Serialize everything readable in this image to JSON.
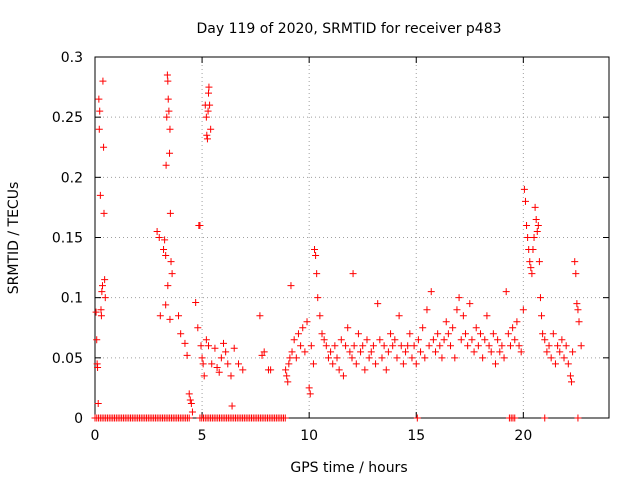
{
  "chart_data": {
    "type": "scatter",
    "title": "Day 119 of 2020, SRMTID for receiver p483",
    "xlabel": "GPS time / hours",
    "ylabel": "SRMTID / TECUs",
    "xlim": [
      0,
      24
    ],
    "ylim": [
      0,
      0.3
    ],
    "grid": true,
    "marker": "+",
    "color": "#ff0000",
    "x_ticks": [
      0,
      5,
      10,
      15,
      20
    ],
    "y_ticks": [
      0,
      0.05,
      0.1,
      0.15,
      0.2,
      0.25,
      0.3
    ],
    "x_tick_labels": [
      "0",
      "5",
      "10",
      "15",
      "20"
    ],
    "y_tick_labels": [
      "0",
      "0.05",
      "0.1",
      "0.15",
      "0.2",
      "0.25",
      "0.3"
    ],
    "series": [
      {
        "name": "SRMTID",
        "points": [
          [
            0.05,
            0.088
          ],
          [
            0.08,
            0.065
          ],
          [
            0.1,
            0.045
          ],
          [
            0.12,
            0.042
          ],
          [
            0.15,
            0.012
          ],
          [
            0.18,
            0.265
          ],
          [
            0.2,
            0.24
          ],
          [
            0.22,
            0.255
          ],
          [
            0.25,
            0.185
          ],
          [
            0.28,
            0.09
          ],
          [
            0.3,
            0.085
          ],
          [
            0.32,
            0.105
          ],
          [
            0.35,
            0.11
          ],
          [
            0.37,
            0.28
          ],
          [
            0.4,
            0.225
          ],
          [
            0.42,
            0.17
          ],
          [
            0.45,
            0.115
          ],
          [
            0.48,
            0.1
          ],
          [
            2.9,
            0.155
          ],
          [
            3.0,
            0.15
          ],
          [
            3.05,
            0.085
          ],
          [
            3.2,
            0.14
          ],
          [
            3.25,
            0.148
          ],
          [
            3.3,
            0.135
          ],
          [
            3.32,
            0.21
          ],
          [
            3.35,
            0.25
          ],
          [
            3.38,
            0.285
          ],
          [
            3.4,
            0.28
          ],
          [
            3.42,
            0.265
          ],
          [
            3.45,
            0.255
          ],
          [
            3.48,
            0.22
          ],
          [
            3.5,
            0.24
          ],
          [
            3.52,
            0.17
          ],
          [
            3.55,
            0.13
          ],
          [
            3.6,
            0.12
          ],
          [
            3.4,
            0.11
          ],
          [
            3.3,
            0.094
          ],
          [
            3.5,
            0.082
          ],
          [
            3.9,
            0.085
          ],
          [
            4.0,
            0.07
          ],
          [
            4.2,
            0.062
          ],
          [
            4.3,
            0.052
          ],
          [
            4.4,
            0.02
          ],
          [
            4.45,
            0.015
          ],
          [
            4.5,
            0.012
          ],
          [
            4.55,
            0.005
          ],
          [
            4.7,
            0.096
          ],
          [
            4.8,
            0.075
          ],
          [
            4.85,
            0.16
          ],
          [
            4.9,
            0.16
          ],
          [
            4.95,
            0.06
          ],
          [
            5.0,
            0.05
          ],
          [
            5.05,
            0.045
          ],
          [
            5.1,
            0.035
          ],
          [
            5.15,
            0.26
          ],
          [
            5.2,
            0.25
          ],
          [
            5.22,
            0.235
          ],
          [
            5.25,
            0.232
          ],
          [
            5.28,
            0.255
          ],
          [
            5.3,
            0.27
          ],
          [
            5.32,
            0.275
          ],
          [
            5.35,
            0.26
          ],
          [
            5.4,
            0.24
          ],
          [
            5.2,
            0.065
          ],
          [
            5.3,
            0.06
          ],
          [
            5.45,
            0.045
          ],
          [
            5.6,
            0.058
          ],
          [
            5.7,
            0.042
          ],
          [
            5.8,
            0.038
          ],
          [
            5.9,
            0.05
          ],
          [
            6.0,
            0.062
          ],
          [
            6.1,
            0.055
          ],
          [
            6.2,
            0.045
          ],
          [
            6.35,
            0.035
          ],
          [
            6.4,
            0.01
          ],
          [
            6.5,
            0.058
          ],
          [
            6.7,
            0.045
          ],
          [
            6.9,
            0.04
          ],
          [
            7.7,
            0.085
          ],
          [
            7.8,
            0.052
          ],
          [
            7.9,
            0.055
          ],
          [
            8.1,
            0.04
          ],
          [
            8.2,
            0.04
          ],
          [
            8.9,
            0.04
          ],
          [
            8.95,
            0.035
          ],
          [
            9.0,
            0.03
          ],
          [
            9.05,
            0.045
          ],
          [
            9.1,
            0.05
          ],
          [
            9.15,
            0.11
          ],
          [
            9.2,
            0.055
          ],
          [
            9.3,
            0.065
          ],
          [
            9.4,
            0.05
          ],
          [
            9.5,
            0.07
          ],
          [
            9.6,
            0.06
          ],
          [
            9.7,
            0.075
          ],
          [
            9.8,
            0.055
          ],
          [
            9.9,
            0.08
          ],
          [
            10.0,
            0.025
          ],
          [
            10.05,
            0.02
          ],
          [
            10.1,
            0.06
          ],
          [
            10.2,
            0.045
          ],
          [
            10.25,
            0.14
          ],
          [
            10.3,
            0.135
          ],
          [
            10.35,
            0.12
          ],
          [
            10.4,
            0.1
          ],
          [
            10.5,
            0.085
          ],
          [
            10.6,
            0.07
          ],
          [
            10.7,
            0.065
          ],
          [
            10.8,
            0.06
          ],
          [
            10.9,
            0.05
          ],
          [
            11.0,
            0.055
          ],
          [
            11.1,
            0.045
          ],
          [
            11.2,
            0.06
          ],
          [
            11.3,
            0.05
          ],
          [
            11.4,
            0.04
          ],
          [
            11.5,
            0.065
          ],
          [
            11.6,
            0.035
          ],
          [
            11.7,
            0.06
          ],
          [
            11.8,
            0.075
          ],
          [
            11.9,
            0.055
          ],
          [
            12.0,
            0.05
          ],
          [
            12.05,
            0.12
          ],
          [
            12.1,
            0.06
          ],
          [
            12.2,
            0.045
          ],
          [
            12.3,
            0.07
          ],
          [
            12.4,
            0.055
          ],
          [
            12.5,
            0.06
          ],
          [
            12.6,
            0.04
          ],
          [
            12.7,
            0.065
          ],
          [
            12.8,
            0.05
          ],
          [
            12.9,
            0.055
          ],
          [
            13.0,
            0.06
          ],
          [
            13.1,
            0.045
          ],
          [
            13.2,
            0.095
          ],
          [
            13.3,
            0.065
          ],
          [
            13.4,
            0.05
          ],
          [
            13.5,
            0.06
          ],
          [
            13.6,
            0.04
          ],
          [
            13.7,
            0.055
          ],
          [
            13.8,
            0.07
          ],
          [
            13.9,
            0.06
          ],
          [
            14.0,
            0.065
          ],
          [
            14.1,
            0.05
          ],
          [
            14.2,
            0.085
          ],
          [
            14.3,
            0.06
          ],
          [
            14.4,
            0.045
          ],
          [
            14.5,
            0.055
          ],
          [
            14.6,
            0.06
          ],
          [
            14.7,
            0.07
          ],
          [
            14.8,
            0.05
          ],
          [
            14.9,
            0.06
          ],
          [
            15.0,
            0.045
          ],
          [
            15.1,
            0.065
          ],
          [
            15.2,
            0.055
          ],
          [
            15.3,
            0.075
          ],
          [
            15.4,
            0.05
          ],
          [
            15.5,
            0.09
          ],
          [
            15.6,
            0.06
          ],
          [
            15.7,
            0.105
          ],
          [
            15.8,
            0.065
          ],
          [
            15.9,
            0.055
          ],
          [
            16.0,
            0.07
          ],
          [
            16.1,
            0.06
          ],
          [
            16.2,
            0.05
          ],
          [
            16.3,
            0.065
          ],
          [
            16.4,
            0.08
          ],
          [
            16.5,
            0.07
          ],
          [
            16.6,
            0.06
          ],
          [
            16.7,
            0.075
          ],
          [
            16.8,
            0.05
          ],
          [
            16.9,
            0.09
          ],
          [
            17.0,
            0.1
          ],
          [
            17.1,
            0.065
          ],
          [
            17.2,
            0.085
          ],
          [
            17.3,
            0.07
          ],
          [
            17.4,
            0.06
          ],
          [
            17.5,
            0.095
          ],
          [
            17.6,
            0.065
          ],
          [
            17.7,
            0.055
          ],
          [
            17.8,
            0.075
          ],
          [
            17.9,
            0.06
          ],
          [
            18.0,
            0.07
          ],
          [
            18.1,
            0.05
          ],
          [
            18.2,
            0.065
          ],
          [
            18.3,
            0.085
          ],
          [
            18.4,
            0.06
          ],
          [
            18.5,
            0.055
          ],
          [
            18.6,
            0.07
          ],
          [
            18.7,
            0.045
          ],
          [
            18.8,
            0.065
          ],
          [
            18.9,
            0.055
          ],
          [
            19.0,
            0.06
          ],
          [
            19.1,
            0.05
          ],
          [
            19.2,
            0.105
          ],
          [
            19.3,
            0.07
          ],
          [
            19.4,
            0.06
          ],
          [
            19.5,
            0.075
          ],
          [
            19.6,
            0.065
          ],
          [
            19.7,
            0.08
          ],
          [
            19.8,
            0.06
          ],
          [
            19.9,
            0.055
          ],
          [
            20.0,
            0.09
          ],
          [
            20.05,
            0.19
          ],
          [
            20.1,
            0.18
          ],
          [
            20.15,
            0.16
          ],
          [
            20.2,
            0.15
          ],
          [
            20.25,
            0.14
          ],
          [
            20.3,
            0.13
          ],
          [
            20.35,
            0.125
          ],
          [
            20.4,
            0.12
          ],
          [
            20.45,
            0.14
          ],
          [
            20.5,
            0.15
          ],
          [
            20.55,
            0.175
          ],
          [
            20.6,
            0.165
          ],
          [
            20.65,
            0.155
          ],
          [
            20.7,
            0.16
          ],
          [
            20.75,
            0.13
          ],
          [
            20.8,
            0.1
          ],
          [
            20.85,
            0.085
          ],
          [
            20.9,
            0.07
          ],
          [
            21.0,
            0.065
          ],
          [
            21.1,
            0.055
          ],
          [
            21.2,
            0.06
          ],
          [
            21.3,
            0.05
          ],
          [
            21.4,
            0.07
          ],
          [
            21.5,
            0.045
          ],
          [
            21.6,
            0.06
          ],
          [
            21.7,
            0.055
          ],
          [
            21.8,
            0.065
          ],
          [
            21.9,
            0.05
          ],
          [
            22.0,
            0.06
          ],
          [
            22.1,
            0.045
          ],
          [
            22.2,
            0.035
          ],
          [
            22.25,
            0.03
          ],
          [
            22.3,
            0.055
          ],
          [
            22.4,
            0.13
          ],
          [
            22.45,
            0.12
          ],
          [
            22.5,
            0.095
          ],
          [
            22.55,
            0.09
          ],
          [
            22.6,
            0.08
          ],
          [
            22.7,
            0.06
          ]
        ],
        "zero_band_ranges": [
          [
            0.0,
            4.4
          ],
          [
            4.9,
            8.9
          ],
          [
            15.05,
            15.1
          ],
          [
            19.35,
            19.6
          ],
          [
            21.0,
            21.05
          ],
          [
            22.55,
            22.6
          ]
        ]
      }
    ]
  }
}
